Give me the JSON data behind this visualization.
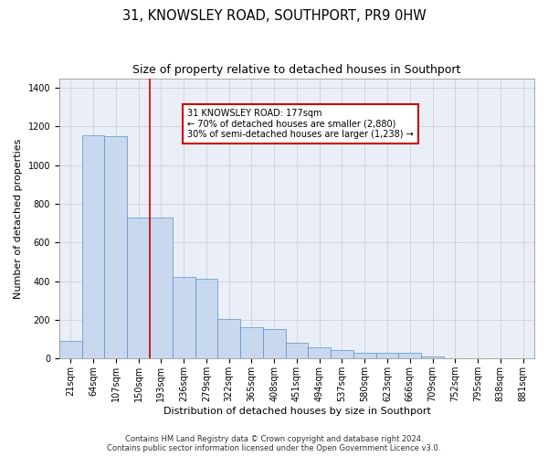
{
  "title": "31, KNOWSLEY ROAD, SOUTHPORT, PR9 0HW",
  "subtitle": "Size of property relative to detached houses in Southport",
  "xlabel": "Distribution of detached houses by size in Southport",
  "ylabel": "Number of detached properties",
  "footer_line1": "Contains HM Land Registry data © Crown copyright and database right 2024.",
  "footer_line2": "Contains public sector information licensed under the Open Government Licence v3.0.",
  "categories": [
    "21sqm",
    "64sqm",
    "107sqm",
    "150sqm",
    "193sqm",
    "236sqm",
    "279sqm",
    "322sqm",
    "365sqm",
    "408sqm",
    "451sqm",
    "494sqm",
    "537sqm",
    "580sqm",
    "623sqm",
    "666sqm",
    "709sqm",
    "752sqm",
    "795sqm",
    "838sqm",
    "881sqm"
  ],
  "values": [
    90,
    1155,
    1150,
    730,
    730,
    420,
    415,
    205,
    160,
    155,
    80,
    58,
    45,
    32,
    30,
    28,
    12,
    2,
    1,
    1,
    1
  ],
  "bar_color": "#c8d9ef",
  "bar_edge_color": "#5b8fc7",
  "vline_color": "#cc0000",
  "vline_x_index": 4,
  "annotation_text": "31 KNOWSLEY ROAD: 177sqm\n← 70% of detached houses are smaller (2,880)\n30% of semi-detached houses are larger (1,238) →",
  "annotation_box_edgecolor": "#cc0000",
  "ylim": [
    0,
    1450
  ],
  "yticks": [
    0,
    200,
    400,
    600,
    800,
    1000,
    1200,
    1400
  ],
  "grid_color": "#cdd5e3",
  "background_color": "#eaeff7",
  "title_fontsize": 10.5,
  "subtitle_fontsize": 9,
  "axis_label_fontsize": 8,
  "tick_fontsize": 7,
  "footer_fontsize": 6,
  "annotation_fontsize": 7
}
